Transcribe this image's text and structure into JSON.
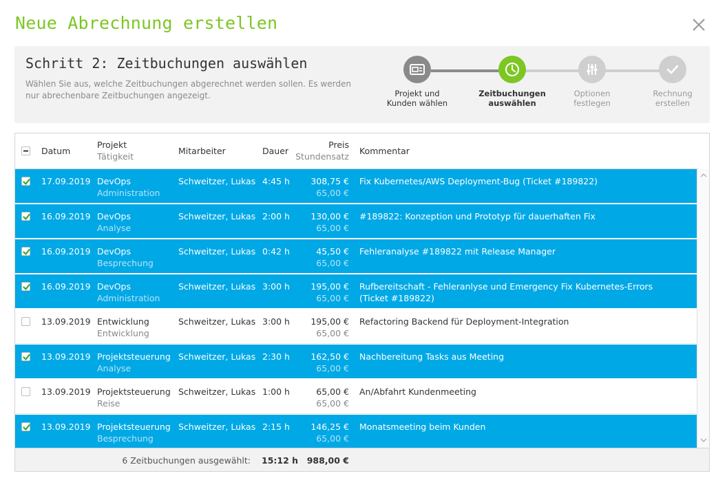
{
  "title": "Neue Abrechnung erstellen",
  "step": {
    "title": "Schritt 2: Zeitbuchungen auswählen",
    "description": "Wählen Sie aus, welche Zeitbuchungen abgerechnet werden sollen. Es werden nur abrechenbare Zeitbuchungen angezeigt."
  },
  "wizard": [
    {
      "line1": "Projekt und",
      "line2": "Kunden wählen",
      "state": "done",
      "icon": "project-card-icon"
    },
    {
      "line1": "Zeitbuchungen",
      "line2": "auswählen",
      "state": "active",
      "icon": "clock-icon"
    },
    {
      "line1": "Optionen",
      "line2": "festlegen",
      "state": "todo",
      "icon": "sliders-icon"
    },
    {
      "line1": "Rechnung",
      "line2": "erstellen",
      "state": "todo",
      "icon": "check-icon"
    }
  ],
  "colors": {
    "accent_green": "#7dc623",
    "selected_row": "#00a8e6",
    "done_grey": "#8a8a8a"
  },
  "table": {
    "headers": {
      "datum": "Datum",
      "projekt": "Projekt",
      "taetigkeit": "Tätigkeit",
      "mitarbeiter": "Mitarbeiter",
      "dauer": "Dauer",
      "preis": "Preis",
      "stundensatz": "Stundensatz",
      "kommentar": "Kommentar"
    },
    "rows": [
      {
        "checked": true,
        "datum": "17.09.2019",
        "projekt": "DevOps",
        "taetigkeit": "Administration",
        "mitarbeiter": "Schweitzer, Lukas",
        "dauer": "4:45 h",
        "preis": "308,75 €",
        "stundensatz": "65,00 €",
        "kommentar": "Fix Kubernetes/AWS Deployment-Bug (Ticket #189822)"
      },
      {
        "checked": true,
        "datum": "16.09.2019",
        "projekt": "DevOps",
        "taetigkeit": "Analyse",
        "mitarbeiter": "Schweitzer, Lukas",
        "dauer": "2:00 h",
        "preis": "130,00 €",
        "stundensatz": "65,00 €",
        "kommentar": "#189822: Konzeption und Prototyp für dauerhaften Fix"
      },
      {
        "checked": true,
        "datum": "16.09.2019",
        "projekt": "DevOps",
        "taetigkeit": "Besprechung",
        "mitarbeiter": "Schweitzer, Lukas",
        "dauer": "0:42 h",
        "preis": "45,50 €",
        "stundensatz": "65,00 €",
        "kommentar": "Fehleranalyse #189822 mit Release Manager"
      },
      {
        "checked": true,
        "datum": "16.09.2019",
        "projekt": "DevOps",
        "taetigkeit": "Administration",
        "mitarbeiter": "Schweitzer, Lukas",
        "dauer": "3:00 h",
        "preis": "195,00 €",
        "stundensatz": "65,00 €",
        "kommentar": "Rufbereitschaft - Fehleranlyse und Emergency Fix Kubernetes-Errors (Ticket #189822)"
      },
      {
        "checked": false,
        "datum": "13.09.2019",
        "projekt": "Entwicklung",
        "taetigkeit": "Entwicklung",
        "mitarbeiter": "Schweitzer, Lukas",
        "dauer": "3:00 h",
        "preis": "195,00 €",
        "stundensatz": "65,00 €",
        "kommentar": "Refactoring Backend für Deployment-Integration"
      },
      {
        "checked": true,
        "datum": "13.09.2019",
        "projekt": "Projektsteuerung",
        "taetigkeit": "Analyse",
        "mitarbeiter": "Schweitzer, Lukas",
        "dauer": "2:30 h",
        "preis": "162,50 €",
        "stundensatz": "65,00 €",
        "kommentar": "Nachbereitung Tasks aus Meeting"
      },
      {
        "checked": false,
        "datum": "13.09.2019",
        "projekt": "Projektsteuerung",
        "taetigkeit": "Reise",
        "mitarbeiter": "Schweitzer, Lukas",
        "dauer": "1:00 h",
        "preis": "65,00 €",
        "stundensatz": "65,00 €",
        "kommentar": "An/Abfahrt Kundenmeeting"
      },
      {
        "checked": true,
        "datum": "13.09.2019",
        "projekt": "Projektsteuerung",
        "taetigkeit": "Besprechung",
        "mitarbeiter": "Schweitzer, Lukas",
        "dauer": "2:15 h",
        "preis": "146,25 €",
        "stundensatz": "65,00 €",
        "kommentar": "Monatsmeeting beim Kunden"
      }
    ],
    "footer": {
      "summary": "6 Zeitbuchungen ausgewählt:",
      "total_duration": "15:12 h",
      "total_price": "988,00 €"
    }
  }
}
